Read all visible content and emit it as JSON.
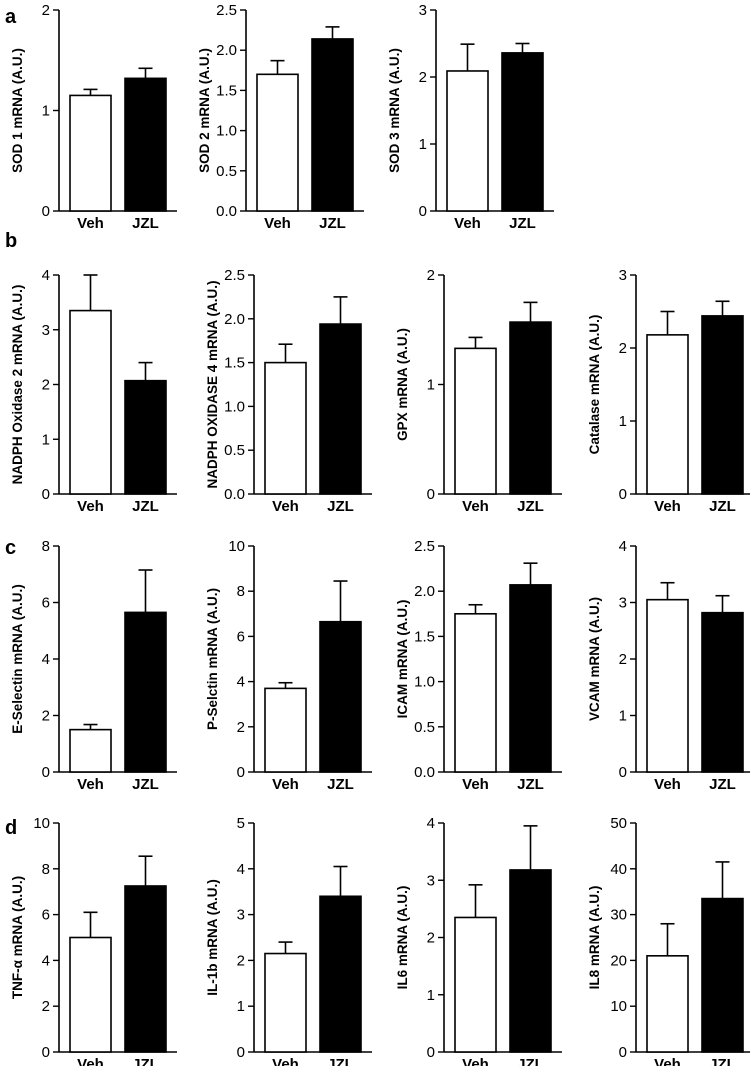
{
  "figure": {
    "panel_labels": [
      "a",
      "b",
      "c",
      "d"
    ]
  },
  "colors": {
    "veh_fill": "#ffffff",
    "jzl_fill": "#000000",
    "stroke": "#000000"
  },
  "chart_data": [
    {
      "type": "bar",
      "panel": "a",
      "ylabel": "SOD 1 mRNA (A.U.)",
      "categories": [
        "Veh",
        "JZL"
      ],
      "values": [
        1.15,
        1.32
      ],
      "errors": [
        0.06,
        0.1
      ],
      "ylim": [
        0,
        2
      ],
      "yticks": [
        "0",
        "1",
        "2"
      ],
      "grid": false
    },
    {
      "type": "bar",
      "panel": "a",
      "ylabel": "SOD 2 mRNA (A.U.)",
      "categories": [
        "Veh",
        "JZL"
      ],
      "values": [
        1.7,
        2.14
      ],
      "errors": [
        0.17,
        0.15
      ],
      "ylim": [
        0,
        2.5
      ],
      "yticks": [
        "0.0",
        "0.5",
        "1.0",
        "1.5",
        "2.0",
        "2.5"
      ],
      "grid": false
    },
    {
      "type": "bar",
      "panel": "a",
      "ylabel": "SOD 3 mRNA (A.U.)",
      "categories": [
        "Veh",
        "JZL"
      ],
      "values": [
        2.09,
        2.36
      ],
      "errors": [
        0.4,
        0.14
      ],
      "ylim": [
        0,
        3
      ],
      "yticks": [
        "0",
        "1",
        "2",
        "3"
      ],
      "grid": false
    },
    {
      "type": "bar",
      "panel": "b",
      "ylabel": "NADPH Oxidase 2 mRNA (A.U.)",
      "categories": [
        "Veh",
        "JZL"
      ],
      "values": [
        3.35,
        2.07
      ],
      "errors": [
        0.65,
        0.33
      ],
      "ylim": [
        0,
        4
      ],
      "yticks": [
        "0",
        "1",
        "2",
        "3",
        "4"
      ],
      "grid": false
    },
    {
      "type": "bar",
      "panel": "b",
      "ylabel": "NADPH OXIDASE 4 mRNA (A.U.)",
      "categories": [
        "Veh",
        "JZL"
      ],
      "values": [
        1.5,
        1.94
      ],
      "errors": [
        0.21,
        0.31
      ],
      "ylim": [
        0,
        2.5
      ],
      "yticks": [
        "0.0",
        "0.5",
        "1.0",
        "1.5",
        "2.0",
        "2.5"
      ],
      "grid": false
    },
    {
      "type": "bar",
      "panel": "b",
      "ylabel": "GPX mRNA (A.U.)",
      "categories": [
        "Veh",
        "JZL"
      ],
      "values": [
        1.33,
        1.57
      ],
      "errors": [
        0.1,
        0.18
      ],
      "ylim": [
        0,
        2
      ],
      "yticks": [
        "0",
        "1",
        "2"
      ],
      "grid": false
    },
    {
      "type": "bar",
      "panel": "b",
      "ylabel": "Catalase mRNA (A.U.)",
      "categories": [
        "Veh",
        "JZL"
      ],
      "values": [
        2.18,
        2.44
      ],
      "errors": [
        0.32,
        0.2
      ],
      "ylim": [
        0,
        3
      ],
      "yticks": [
        "0",
        "1",
        "2",
        "3"
      ],
      "grid": false
    },
    {
      "type": "bar",
      "panel": "c",
      "ylabel": "E-Selectin mRNA (A.U.)",
      "categories": [
        "Veh",
        "JZL"
      ],
      "values": [
        1.5,
        5.65
      ],
      "errors": [
        0.18,
        1.5
      ],
      "ylim": [
        0,
        8
      ],
      "yticks": [
        "0",
        "2",
        "4",
        "6",
        "8"
      ],
      "grid": false
    },
    {
      "type": "bar",
      "panel": "c",
      "ylabel": "P-Selctin mRNA (A.U.)",
      "categories": [
        "Veh",
        "JZL"
      ],
      "values": [
        3.7,
        6.65
      ],
      "errors": [
        0.25,
        1.8
      ],
      "ylim": [
        0,
        10
      ],
      "yticks": [
        "0",
        "2",
        "4",
        "6",
        "8",
        "10"
      ],
      "grid": false
    },
    {
      "type": "bar",
      "panel": "c",
      "ylabel": "ICAM mRNA (A.U.)",
      "categories": [
        "Veh",
        "JZL"
      ],
      "values": [
        1.75,
        2.07
      ],
      "errors": [
        0.1,
        0.24
      ],
      "ylim": [
        0,
        2.5
      ],
      "yticks": [
        "0.0",
        "0.5",
        "1.0",
        "1.5",
        "2.0",
        "2.5"
      ],
      "grid": false
    },
    {
      "type": "bar",
      "panel": "c",
      "ylabel": "VCAM mRNA (A.U.)",
      "categories": [
        "Veh",
        "JZL"
      ],
      "values": [
        3.05,
        2.82
      ],
      "errors": [
        0.3,
        0.3
      ],
      "ylim": [
        0,
        4
      ],
      "yticks": [
        "0",
        "1",
        "2",
        "3",
        "4"
      ],
      "grid": false
    },
    {
      "type": "bar",
      "panel": "d",
      "ylabel": "TNF-α mRNA (A.U.)",
      "categories": [
        "Veh",
        "JZL"
      ],
      "values": [
        5.0,
        7.25
      ],
      "errors": [
        1.1,
        1.3
      ],
      "ylim": [
        0,
        10
      ],
      "yticks": [
        "0",
        "2",
        "4",
        "6",
        "8",
        "10"
      ],
      "grid": false
    },
    {
      "type": "bar",
      "panel": "d",
      "ylabel": "IL-1b mRNA (A.U.)",
      "categories": [
        "Veh",
        "JZL"
      ],
      "values": [
        2.15,
        3.4
      ],
      "errors": [
        0.25,
        0.65
      ],
      "ylim": [
        0,
        5
      ],
      "yticks": [
        "0",
        "1",
        "2",
        "3",
        "4",
        "5"
      ],
      "grid": false
    },
    {
      "type": "bar",
      "panel": "d",
      "ylabel": "IL6 mRNA (A.U.)",
      "categories": [
        "Veh",
        "JZL"
      ],
      "values": [
        2.35,
        3.18
      ],
      "errors": [
        0.57,
        0.77
      ],
      "ylim": [
        0,
        4
      ],
      "yticks": [
        "0",
        "1",
        "2",
        "3",
        "4"
      ],
      "grid": false
    },
    {
      "type": "bar",
      "panel": "d",
      "ylabel": "IL8 mRNA (A.U.)",
      "categories": [
        "Veh",
        "JZL"
      ],
      "values": [
        21.0,
        33.5
      ],
      "errors": [
        7.0,
        8.0
      ],
      "ylim": [
        0,
        50
      ],
      "yticks": [
        "0",
        "10",
        "20",
        "30",
        "40",
        "50"
      ],
      "grid": false
    }
  ]
}
